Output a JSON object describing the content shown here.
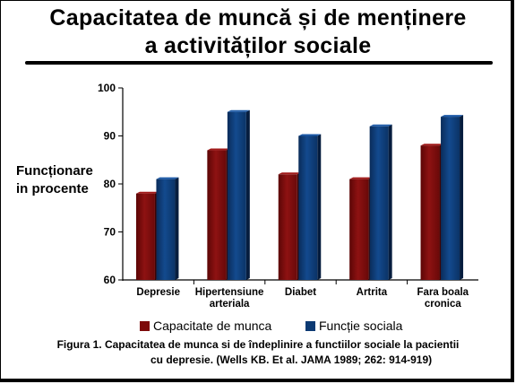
{
  "title_line1": "Capacitatea de muncă și de menținere",
  "title_line2": "a activităților sociale",
  "y_label_line1": "Funcționare",
  "y_label_line2": "in procente",
  "legend": [
    {
      "label": "Capacitate de munca",
      "color": "#7d0a0a"
    },
    {
      "label": "Funcție sociala",
      "color": "#0c3a73"
    }
  ],
  "caption_line1": "Figura 1. Capacitatea de munca si de îndeplinire a functiilor sociale la pacientii",
  "caption_line2": "cu depresie. (Wells KB. Et al. JAMA 1989; 262: 914-919)",
  "chart_data": {
    "type": "bar",
    "categories": [
      [
        "Depresie"
      ],
      [
        "Hipertensiune",
        "arteriala"
      ],
      [
        "Diabet"
      ],
      [
        "Artrita"
      ],
      [
        "Fara boala",
        "cronica"
      ]
    ],
    "series": [
      {
        "name": "Capacitate de munca",
        "color": "#7d0a0a",
        "values": [
          78,
          87,
          82,
          81,
          88
        ]
      },
      {
        "name": "Funcție sociala",
        "color": "#0c3a73",
        "values": [
          81,
          95,
          90,
          92,
          94
        ]
      }
    ],
    "ylim": [
      60,
      100
    ],
    "yticks": [
      "60",
      "70",
      "80",
      "90",
      "100"
    ],
    "grid": false
  }
}
